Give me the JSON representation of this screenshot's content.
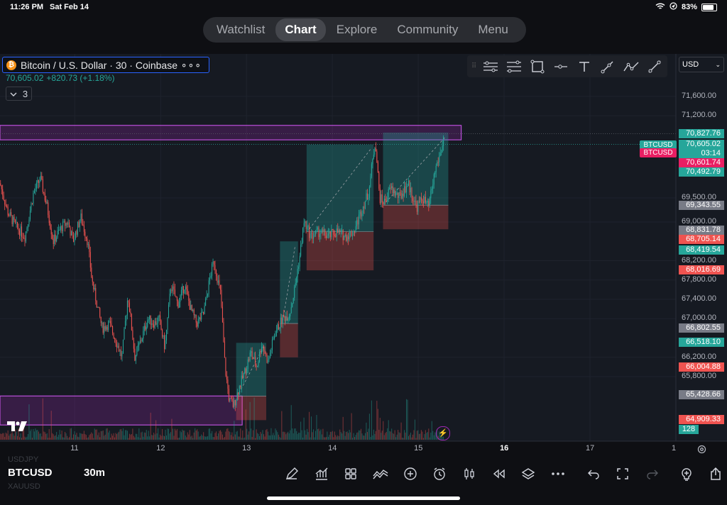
{
  "status_bar": {
    "time": "11:26 PM",
    "date": "Sat Feb 14",
    "battery": "83%"
  },
  "nav_tabs": [
    {
      "label": "Watchlist",
      "active": false
    },
    {
      "label": "Chart",
      "active": true
    },
    {
      "label": "Explore",
      "active": false
    },
    {
      "label": "Community",
      "active": false
    },
    {
      "label": "Menu",
      "active": false
    }
  ],
  "symbol": {
    "icon_letter": "₿",
    "title": "Bitcoin / U.S. Dollar · 30 · Coinbase",
    "more": "∘∘∘",
    "price": "70,605.02",
    "change": "+820.73 (+1.18%)",
    "indicator_count": "3"
  },
  "currency_select": "USD",
  "drawing_tools": [
    "horizontal-lines-icon",
    "parallel-channel-icon",
    "rectangle-icon",
    "horizontal-ray-icon",
    "text-icon",
    "brush-icon",
    "path-icon",
    "trend-line-icon"
  ],
  "price_axis": {
    "labels": [
      {
        "text": "71,600.00",
        "v": 71600
      },
      {
        "text": "71,200.00",
        "v": 71200
      },
      {
        "text": "69,500.00",
        "v": 69500
      },
      {
        "text": "69,000.00",
        "v": 69000
      },
      {
        "text": "68,200.00",
        "v": 68200
      },
      {
        "text": "67,800.00",
        "v": 67800
      },
      {
        "text": "67,400.00",
        "v": 67400
      },
      {
        "text": "67,000.00",
        "v": 67000
      },
      {
        "text": "66,200.00",
        "v": 66200
      },
      {
        "text": "65,800.00",
        "v": 65800
      }
    ],
    "tags": [
      {
        "text": "70,827.76",
        "v": 70827.76,
        "color": "#26a69a"
      },
      {
        "text": "70,605.02",
        "v": 70605.02,
        "color": "#26a69a"
      },
      {
        "text": "03:14",
        "v": 70490,
        "color": "#26a69a"
      },
      {
        "text": "70,601.74",
        "v": 70601.74,
        "color": "#e91e63"
      },
      {
        "text": "70,492.79",
        "v": 70492.79,
        "color": "#26a69a"
      },
      {
        "text": "69,343.55",
        "v": 69343.55,
        "color": "#787b86"
      },
      {
        "text": "68,831.78",
        "v": 68831.78,
        "color": "#787b86"
      },
      {
        "text": "68,705.14",
        "v": 68705.14,
        "color": "#ef5350"
      },
      {
        "text": "68,419.54",
        "v": 68419.54,
        "color": "#26a69a"
      },
      {
        "text": "68,016.69",
        "v": 68016.69,
        "color": "#ef5350"
      },
      {
        "text": "66,802.55",
        "v": 66802.55,
        "color": "#787b86"
      },
      {
        "text": "66,518.10",
        "v": 66518.1,
        "color": "#26a69a"
      },
      {
        "text": "66,004.88",
        "v": 66004.88,
        "color": "#ef5350"
      },
      {
        "text": "65,428.66",
        "v": 65428.66,
        "color": "#787b86"
      },
      {
        "text": "64,909.33",
        "v": 64909.33,
        "color": "#ef5350"
      }
    ],
    "volume_tag": "128",
    "side_tags": [
      {
        "text": "BTCUSD",
        "v": 70830,
        "color": "#26a69a"
      },
      {
        "text": "BTCUSD",
        "v": 70601.74,
        "color": "#e91e63"
      }
    ]
  },
  "time_axis": [
    {
      "text": "11",
      "x": 11,
      "bold": false
    },
    {
      "text": "12",
      "x": 12,
      "bold": false
    },
    {
      "text": "13",
      "x": 13,
      "bold": false
    },
    {
      "text": "14",
      "x": 14,
      "bold": false
    },
    {
      "text": "15",
      "x": 15,
      "bold": false
    },
    {
      "text": "16",
      "x": 16,
      "bold": true
    },
    {
      "text": "17",
      "x": 17,
      "bold": false
    },
    {
      "text": "1",
      "x": 18,
      "bold": false
    }
  ],
  "chart_data": {
    "type": "candlestick",
    "symbol": "BTCUSD",
    "interval": "30",
    "ylim": [
      64700,
      71950
    ],
    "xlim": [
      10.13,
      18.0
    ],
    "path": [
      [
        10.13,
        69800
      ],
      [
        10.22,
        69200
      ],
      [
        10.32,
        68900
      ],
      [
        10.42,
        68700
      ],
      [
        10.52,
        69600
      ],
      [
        10.6,
        69900
      ],
      [
        10.68,
        69300
      ],
      [
        10.75,
        68600
      ],
      [
        10.85,
        68900
      ],
      [
        10.92,
        69000
      ],
      [
        10.98,
        68600
      ],
      [
        11.07,
        69100
      ],
      [
        11.15,
        68600
      ],
      [
        11.2,
        67800
      ],
      [
        11.27,
        67200
      ],
      [
        11.32,
        66800
      ],
      [
        11.4,
        66900
      ],
      [
        11.47,
        66600
      ],
      [
        11.55,
        66200
      ],
      [
        11.62,
        67500
      ],
      [
        11.7,
        66200
      ],
      [
        11.78,
        66600
      ],
      [
        11.85,
        67000
      ],
      [
        11.93,
        66900
      ],
      [
        11.98,
        67000
      ],
      [
        12.05,
        66400
      ],
      [
        12.12,
        67700
      ],
      [
        12.2,
        67300
      ],
      [
        12.28,
        67700
      ],
      [
        12.35,
        67200
      ],
      [
        12.42,
        66900
      ],
      [
        12.5,
        67100
      ],
      [
        12.58,
        67900
      ],
      [
        12.62,
        68200
      ],
      [
        12.7,
        67500
      ],
      [
        12.75,
        66000
      ],
      [
        12.8,
        65300
      ],
      [
        12.85,
        65200
      ],
      [
        12.92,
        65600
      ],
      [
        12.98,
        65900
      ],
      [
        13.05,
        66300
      ],
      [
        13.12,
        66000
      ],
      [
        13.18,
        66500
      ],
      [
        13.25,
        66100
      ],
      [
        13.33,
        66700
      ],
      [
        13.42,
        67000
      ],
      [
        13.5,
        67100
      ],
      [
        13.55,
        67500
      ],
      [
        13.62,
        68300
      ],
      [
        13.67,
        69000
      ],
      [
        13.75,
        68700
      ],
      [
        13.85,
        68800
      ],
      [
        13.95,
        68700
      ],
      [
        14.05,
        68800
      ],
      [
        14.15,
        68700
      ],
      [
        14.25,
        68800
      ],
      [
        14.35,
        69300
      ],
      [
        14.42,
        69600
      ],
      [
        14.5,
        70700
      ],
      [
        14.55,
        69500
      ],
      [
        14.6,
        69400
      ],
      [
        14.68,
        69700
      ],
      [
        14.78,
        69500
      ],
      [
        14.88,
        69800
      ],
      [
        14.98,
        69300
      ],
      [
        15.05,
        69500
      ],
      [
        15.12,
        69300
      ],
      [
        15.2,
        70100
      ],
      [
        15.27,
        70500
      ],
      [
        15.3,
        70800
      ]
    ],
    "candles_drawn": 420,
    "volume_max": 128,
    "positions": [
      {
        "type": "long",
        "x0": 13.7,
        "x1": 14.48,
        "entry": 68800,
        "target": 70600,
        "stop": 68000
      },
      {
        "type": "long",
        "x0": 14.59,
        "x1": 15.35,
        "entry": 69350,
        "target": 70850,
        "stop": 68850
      },
      {
        "type": "long",
        "x0": 13.39,
        "x1": 13.6,
        "entry": 66900,
        "target": 68600,
        "stop": 66200
      },
      {
        "type": "long",
        "x0": 12.88,
        "x1": 13.23,
        "entry": 65400,
        "target": 66500,
        "stop": 64900
      }
    ],
    "zones": [
      {
        "y0": 70700,
        "y1": 71000,
        "x0": 10.13,
        "x1": 15.5
      },
      {
        "y0": 64800,
        "y1": 65400,
        "x0": 10.13,
        "x1": 12.95
      }
    ]
  },
  "bottom": {
    "symbol": "BTCUSD",
    "symbol_prev": "USDJPY",
    "symbol_next": "XAUUSD",
    "timeframe": "30m"
  },
  "bottom_tools": [
    "pen-icon",
    "indicators-icon",
    "layouts-icon",
    "compare-icon",
    "plus-circle-icon",
    "alert-clock-icon",
    "candle-type-icon",
    "replay-icon",
    "layers-icon",
    "more-icon",
    "undo-icon",
    "fullscreen-icon",
    "redo-icon",
    "idea-icon",
    "share-icon"
  ]
}
